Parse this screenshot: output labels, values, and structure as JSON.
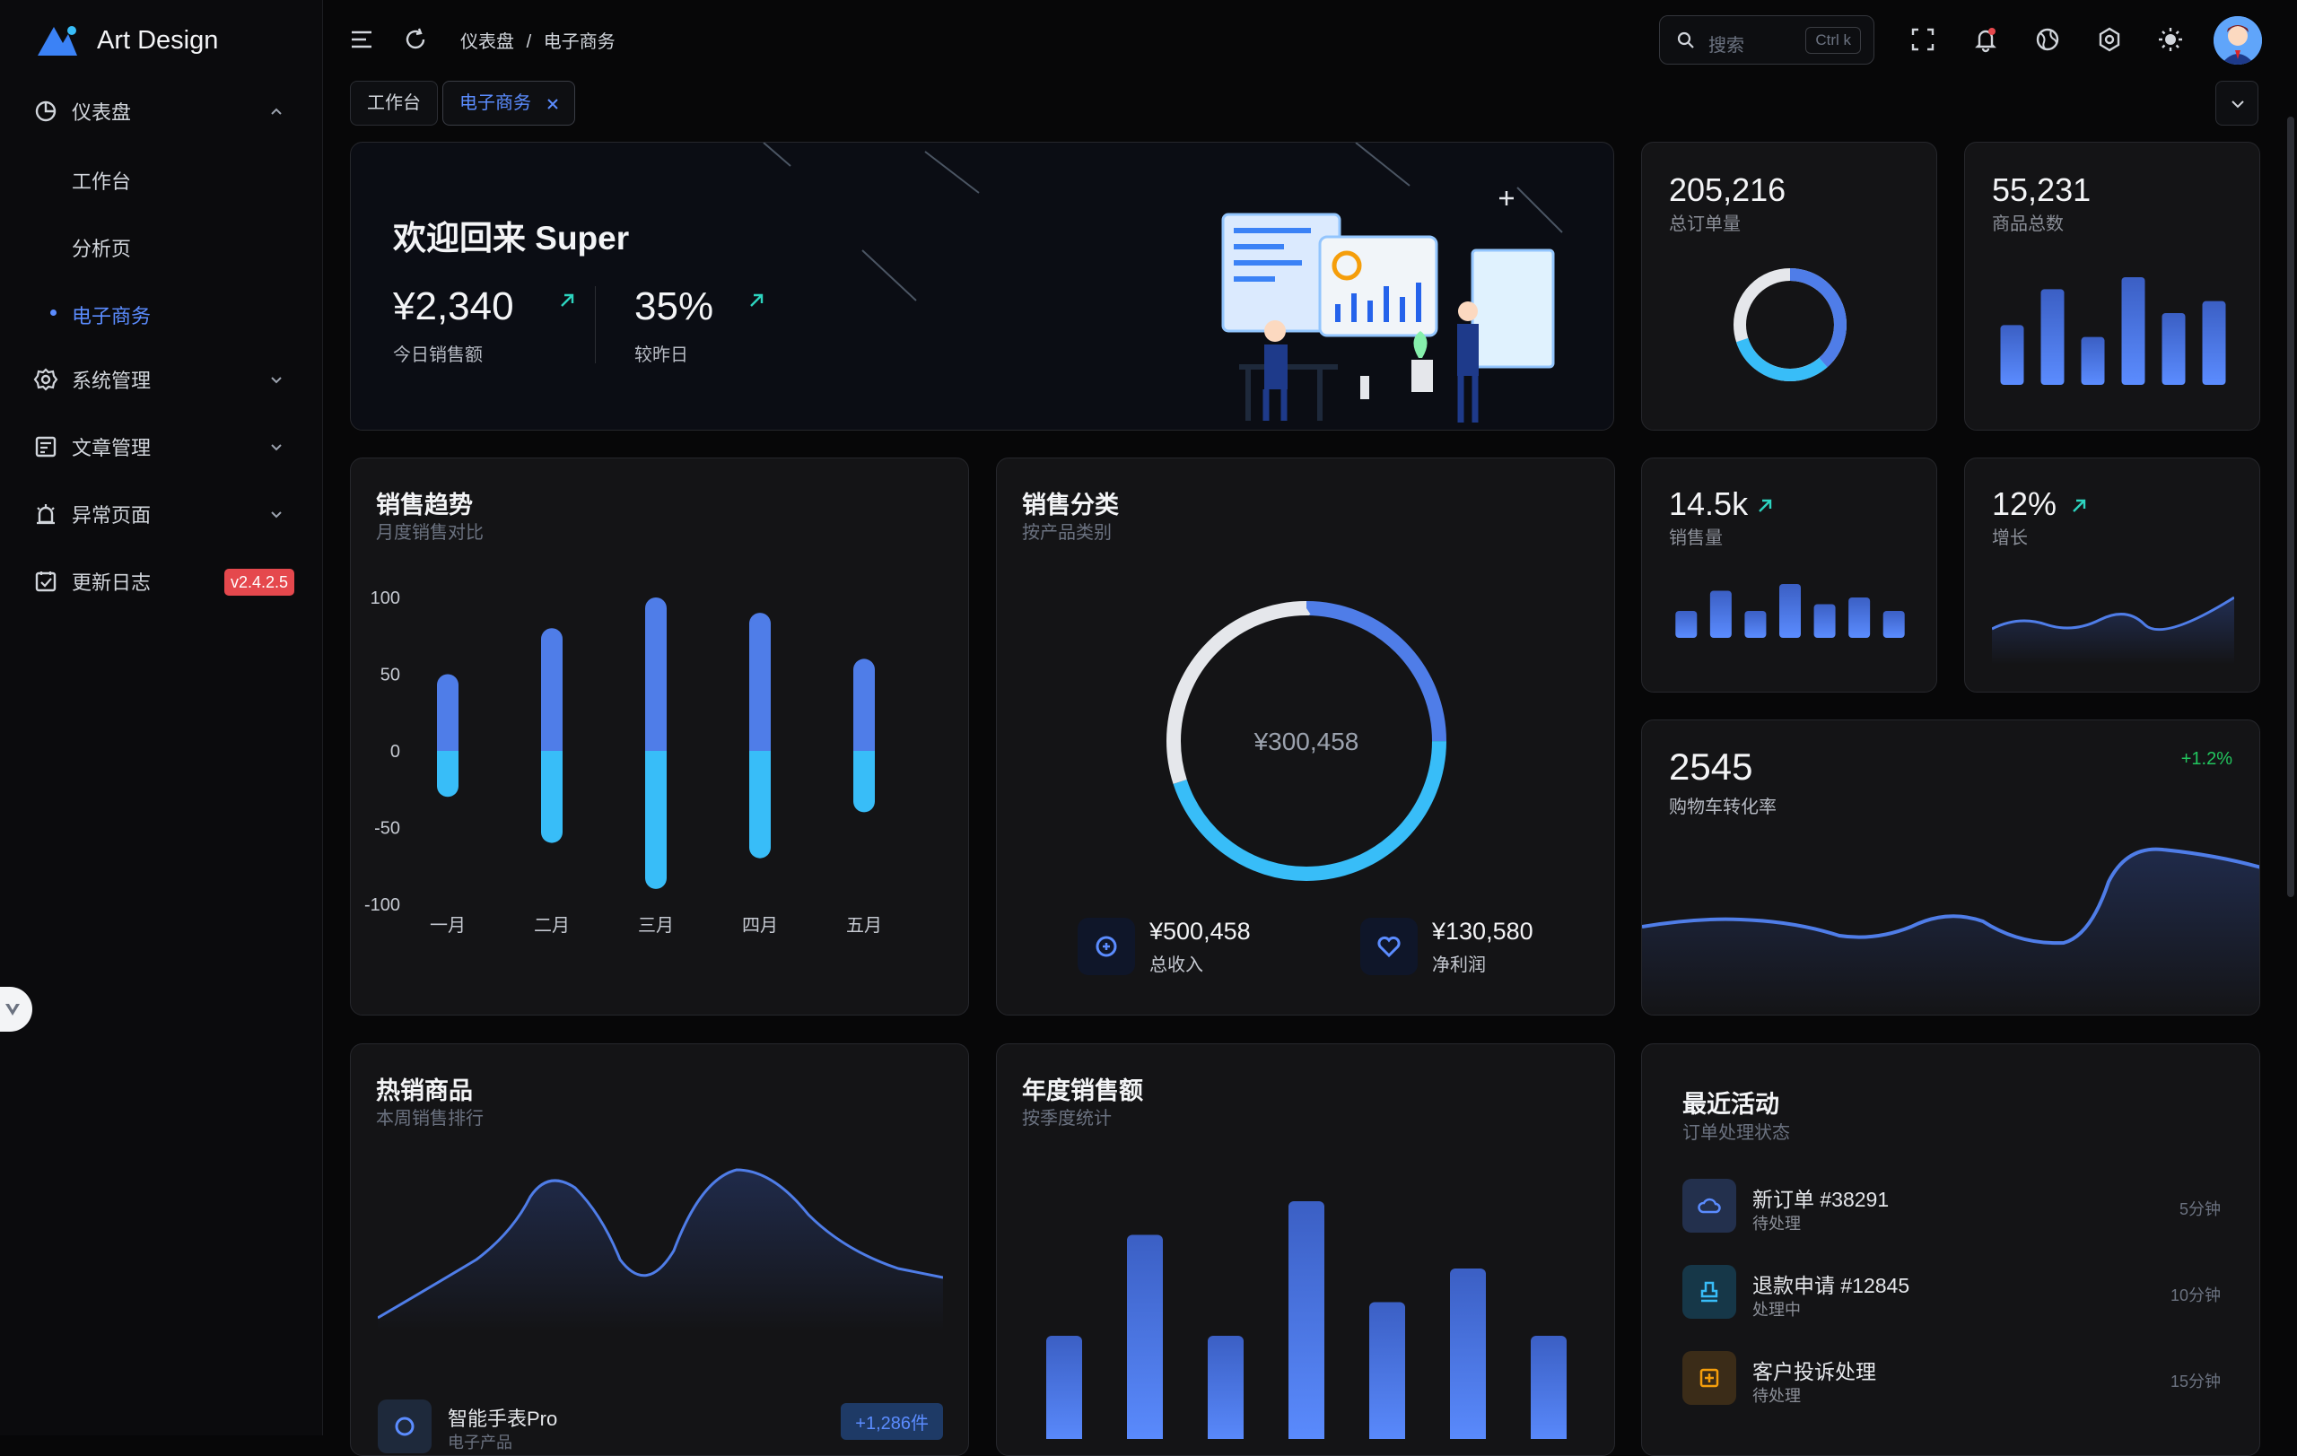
{
  "app": {
    "name": "Art Design"
  },
  "sidebar": {
    "items": [
      {
        "label": "仪表盘",
        "icon": "dashboard-icon",
        "expanded": true,
        "children": [
          {
            "label": "工作台"
          },
          {
            "label": "分析页"
          },
          {
            "label": "电子商务",
            "active": true
          }
        ]
      },
      {
        "label": "系统管理",
        "icon": "gear-icon"
      },
      {
        "label": "文章管理",
        "icon": "article-icon"
      },
      {
        "label": "异常页面",
        "icon": "alarm-icon"
      },
      {
        "label": "更新日志",
        "icon": "changelog-icon",
        "badge": "v2.4.2.5"
      }
    ]
  },
  "header": {
    "breadcrumb": [
      "仪表盘",
      "电子商务"
    ],
    "breadcrumb_sep": "/",
    "search": {
      "placeholder": "搜索",
      "shortcut": "Ctrl k"
    }
  },
  "tabs": [
    {
      "label": "工作台"
    },
    {
      "label": "电子商务",
      "active": true
    }
  ],
  "welcome": {
    "title": "欢迎回来 Super",
    "sales": "¥2,340",
    "sales_label": "今日销售额",
    "growth": "35%",
    "growth_label": "较昨日"
  },
  "stats": {
    "orders": {
      "value": "205,216",
      "label": "总订单量",
      "ring_fraction": 0.7
    },
    "products": {
      "value": "55,231",
      "label": "商品总数",
      "bars": [
        50,
        80,
        40,
        90,
        60,
        70
      ]
    },
    "sales_volume": {
      "value": "14.5k",
      "label": "销售量",
      "bars": [
        40,
        70,
        40,
        80,
        50,
        60,
        40
      ]
    },
    "growth": {
      "value": "12%",
      "label": "增长"
    },
    "cart": {
      "value": "2545",
      "label": "购物车转化率",
      "change": "+1.2%"
    }
  },
  "sales_trend": {
    "title": "销售趋势",
    "subtitle": "月度销售对比",
    "chart_data": {
      "type": "bar",
      "categories": [
        "一月",
        "二月",
        "三月",
        "四月",
        "五月"
      ],
      "series": [
        {
          "values": [
            50,
            80,
            100,
            90,
            60
          ]
        },
        {
          "values": [
            -30,
            -60,
            -90,
            -70,
            -40
          ]
        }
      ],
      "yticks": [
        "100",
        "50",
        "0",
        "-50",
        "-100"
      ],
      "ylim": [
        -100,
        100
      ]
    }
  },
  "sales_category": {
    "title": "销售分类",
    "subtitle": "按产品类别",
    "center": "¥300,458",
    "income": {
      "value": "¥500,458",
      "label": "总收入"
    },
    "profit": {
      "value": "¥130,580",
      "label": "净利润"
    },
    "chart_data": {
      "type": "pie",
      "values": [
        25,
        45,
        30
      ]
    }
  },
  "hot_products": {
    "title": "热销商品",
    "subtitle": "本周销售排行",
    "item": {
      "name": "智能手表Pro",
      "category": "电子产品",
      "count": "+1,286件"
    }
  },
  "annual_sales": {
    "title": "年度销售额",
    "subtitle": "按季度统计",
    "chart_data": {
      "type": "bar",
      "values": [
        50,
        95,
        50,
        110,
        65,
        80,
        50
      ]
    }
  },
  "activity": {
    "title": "最近活动",
    "subtitle": "订单处理状态",
    "items": [
      {
        "title": "新订单 #38291",
        "status": "待处理",
        "time": "5分钟",
        "icon": "cloud-icon",
        "color": "#5b8cff"
      },
      {
        "title": "退款申请 #12845",
        "status": "处理中",
        "time": "10分钟",
        "icon": "stamp-icon",
        "color": "#38bdf8"
      },
      {
        "title": "客户投诉处理",
        "status": "待处理",
        "time": "15分钟",
        "icon": "complaint-icon",
        "color": "#f59e0b"
      }
    ]
  },
  "colors": {
    "accent": "#5b8cff",
    "accent2": "#38bdf8",
    "danger": "#e5484d",
    "positive": "#22c55e"
  }
}
